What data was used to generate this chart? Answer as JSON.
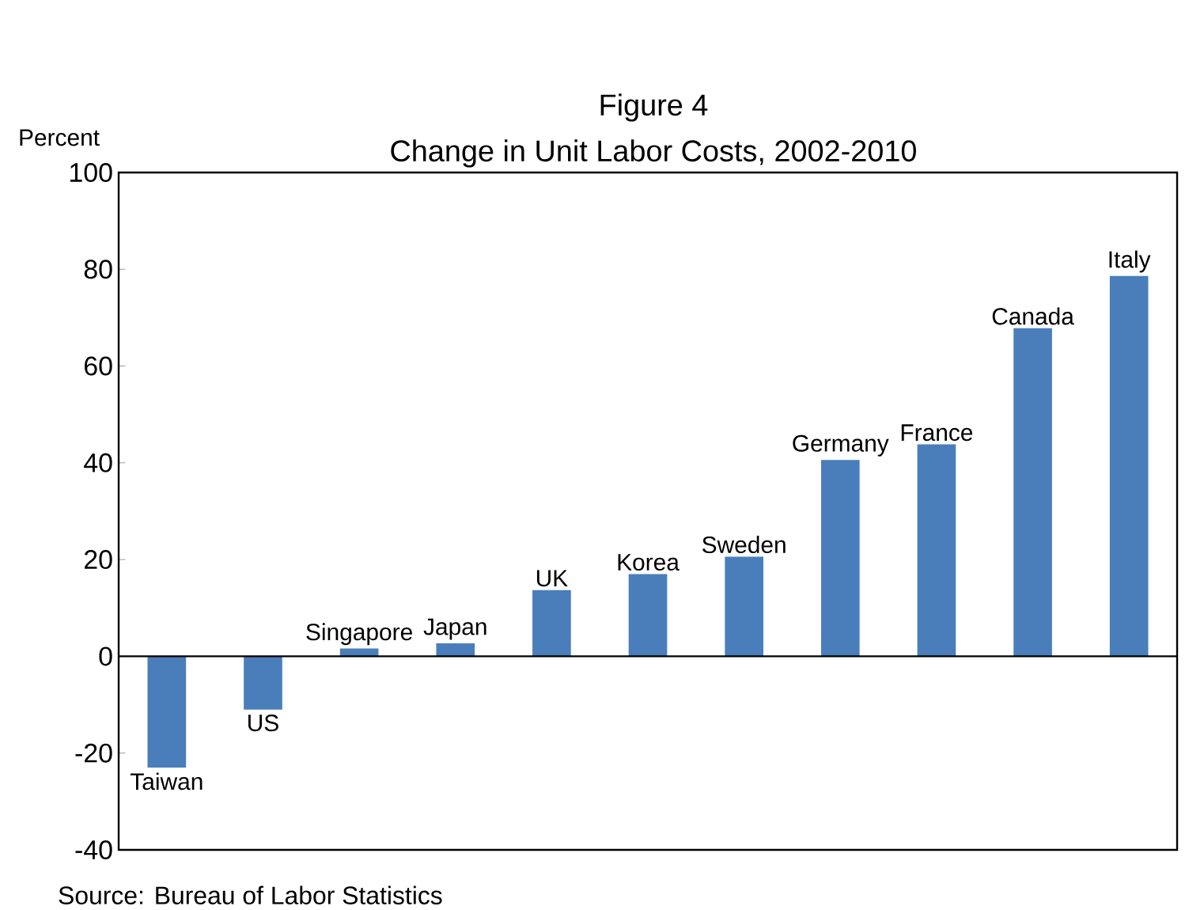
{
  "chart_data": {
    "type": "bar",
    "title": "Figure 4",
    "subtitle": "Change in Unit Labor Costs, 2002-2010",
    "ylabel": "Percent",
    "categories": [
      "Taiwan",
      "US",
      "Singapore",
      "Japan",
      "UK",
      "Korea",
      "Sweden",
      "Germany",
      "France",
      "Canada",
      "Italy"
    ],
    "values": [
      -23,
      -11,
      1.6,
      2.7,
      13.7,
      17,
      20.6,
      40.6,
      43.8,
      67.8,
      78.6
    ],
    "color": "#4a7ebb",
    "ylim": [
      -40,
      100
    ],
    "yticks": [
      -40,
      -20,
      0,
      20,
      40,
      60,
      80,
      100
    ],
    "grid": false,
    "annotations": [
      "Source: Bureau of Labor Statistics"
    ]
  }
}
